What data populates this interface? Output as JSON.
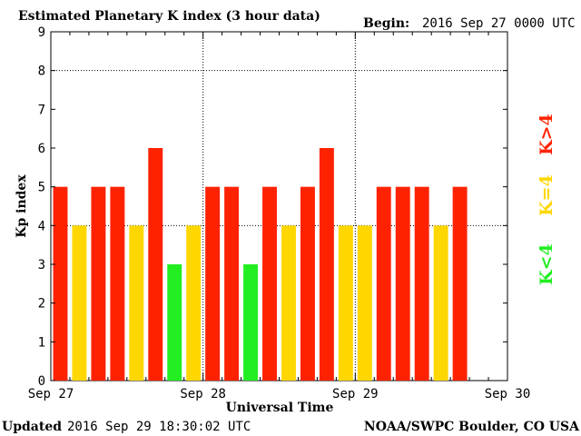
{
  "header": {
    "title": "Estimated Planetary K index (3 hour data)",
    "begin_label": "Begin:",
    "begin_value": "2016 Sep 27 0000 UTC"
  },
  "footer": {
    "updated_label": "Updated",
    "updated_value": "2016 Sep 29 18:30:02 UTC",
    "source": "NOAA/SWPC Boulder, CO USA"
  },
  "legend": {
    "k_gt_4": "K>4",
    "k_eq_4": "K=4",
    "k_lt_4": "K<4"
  },
  "colors": {
    "k_gt_4": "#ff2200",
    "k_eq_4": "#ffd700",
    "k_lt_4": "#22ee22",
    "axis": "#000000",
    "grid": "#000000"
  },
  "chart_data": {
    "type": "bar",
    "title": "Estimated Planetary K index (3 hour data)",
    "xlabel": "Universal Time",
    "ylabel": "Kp index",
    "ylim": [
      0,
      9
    ],
    "yticks": [
      "0",
      "1",
      "2",
      "3",
      "4",
      "5",
      "6",
      "7",
      "8",
      "9"
    ],
    "xticks": [
      "Sep 27",
      "Sep 28",
      "Sep 29",
      "Sep 30"
    ],
    "slots_per_day": 8,
    "days": 3,
    "values": [
      5,
      4,
      5,
      5,
      4,
      6,
      3,
      4,
      5,
      5,
      3,
      5,
      4,
      5,
      6,
      4,
      4,
      5,
      5,
      5,
      4,
      5
    ],
    "grid": "dotted, vertical at day boundaries and horizontal at 4 and 8",
    "legend_placement": "right"
  }
}
